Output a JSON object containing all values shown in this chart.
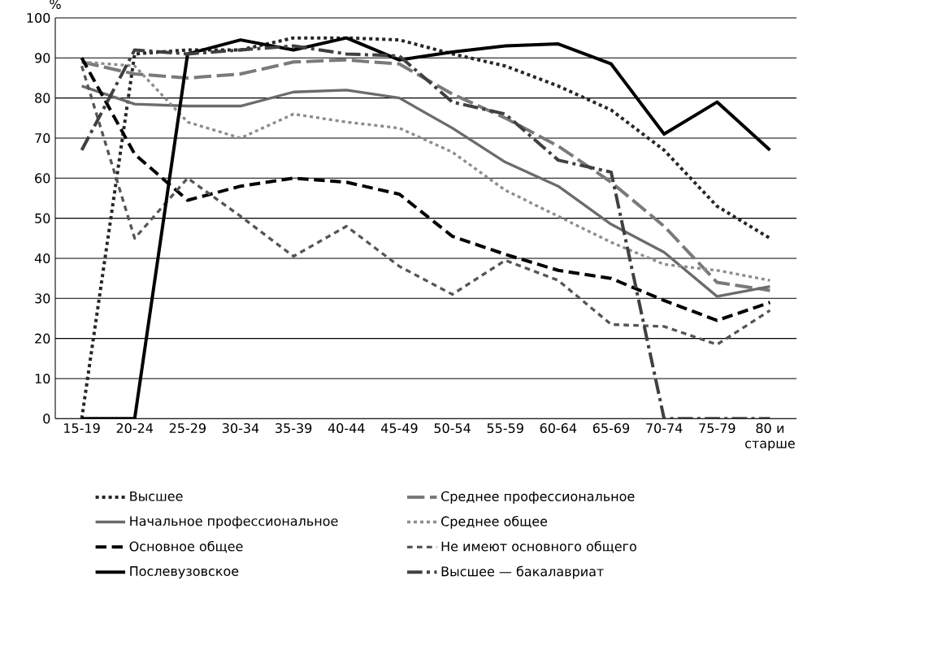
{
  "chart_data": {
    "type": "line",
    "ylabel": "%",
    "categories": [
      "15-19",
      "20-24",
      "25-29",
      "30-34",
      "35-39",
      "40-44",
      "45-49",
      "50-54",
      "55-59",
      "60-64",
      "65-69",
      "70-74",
      "75-79",
      "80 и старше"
    ],
    "ylim": [
      0,
      100
    ],
    "yticks": [
      0,
      10,
      20,
      30,
      40,
      50,
      60,
      70,
      80,
      90,
      100
    ],
    "grid": "y",
    "legend": "bottom",
    "series": [
      {
        "name": "Высшее",
        "color": "#262626",
        "line_style": "dotted",
        "values": [
          0,
          91,
          92,
          92,
          95,
          95,
          94.5,
          91,
          88,
          83,
          77,
          67,
          53,
          45
        ]
      },
      {
        "name": "Среднее профессиональное",
        "color": "#7a7a7a",
        "line_style": "dashed",
        "values": [
          89,
          86,
          85,
          86,
          89,
          89.5,
          88.5,
          81,
          75,
          68,
          59,
          48,
          34,
          32
        ]
      },
      {
        "name": "Начальное профессиональное",
        "color": "#6b6b6b",
        "line_style": "solid",
        "values": [
          83,
          78.5,
          78,
          78,
          81.5,
          82,
          80,
          72.5,
          64,
          58,
          48.5,
          41.5,
          30.5,
          33
        ]
      },
      {
        "name": "Среднее общее",
        "color": "#8c8c8c",
        "line_style": "dotted",
        "values": [
          89,
          88,
          74,
          70,
          76,
          74,
          72.5,
          66.5,
          57,
          50.5,
          44,
          38.5,
          37,
          34.5
        ]
      },
      {
        "name": "Основное общее",
        "color": "#000000",
        "line_style": "dashed",
        "values": [
          90,
          66,
          54.5,
          58,
          60,
          59,
          56,
          45.5,
          41,
          37,
          35,
          29.5,
          24.5,
          29
        ]
      },
      {
        "name": "Не имеют основного общего",
        "color": "#555555",
        "line_style": "dashed",
        "values": [
          88,
          45,
          60,
          50.5,
          40.5,
          48,
          38,
          31,
          39.5,
          34.5,
          23.5,
          23,
          18.5,
          27
        ]
      },
      {
        "name": "Послевузовское",
        "color": "#000000",
        "line_style": "solid",
        "values": [
          0,
          0,
          91,
          94.5,
          92,
          95,
          89.5,
          91.5,
          93,
          93.5,
          88.5,
          71,
          79,
          67
        ]
      },
      {
        "name": "Высшее — бакалавриат",
        "color": "#404040",
        "line_style": "dashdot",
        "values": [
          67,
          92,
          91,
          92,
          93,
          91,
          90.5,
          79,
          76,
          64.5,
          61.5,
          0,
          0,
          0
        ]
      }
    ]
  }
}
